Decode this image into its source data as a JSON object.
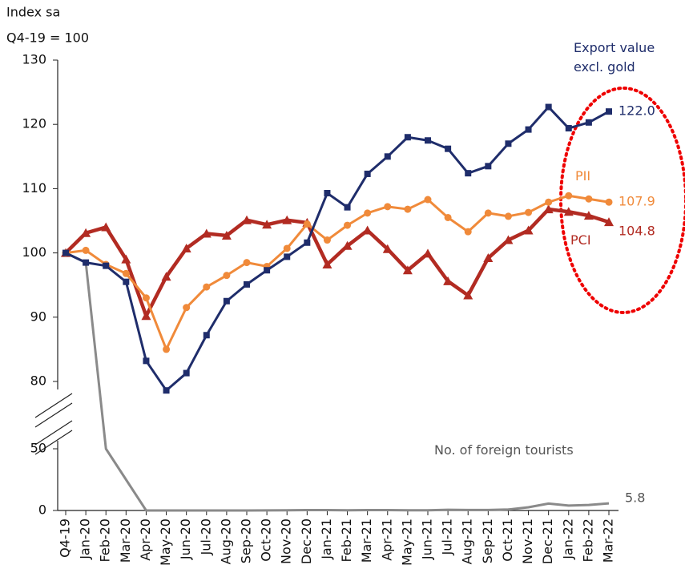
{
  "chart_data": {
    "type": "line",
    "y_title": [
      "Index sa",
      "Q4-19 = 100"
    ],
    "categories": [
      "Q4-19",
      "Jan-20",
      "Feb-20",
      "Mar-20",
      "Apr-20",
      "May-20",
      "Jun-20",
      "Jul-20",
      "Aug-20",
      "Sep-20",
      "Oct-20",
      "Nov-20",
      "Dec-20",
      "Jan-21",
      "Feb-21",
      "Mar-21",
      "Apr-21",
      "May-21",
      "Jun-21",
      "Jul-21",
      "Aug-21",
      "Sep-21",
      "Oct-21",
      "Nov-21",
      "Dec-21",
      "Jan-22",
      "Feb-22",
      "Mar-22"
    ],
    "ylim": [
      0,
      130
    ],
    "y_break": [
      50,
      80
    ],
    "yticks": [
      0,
      50,
      80,
      90,
      100,
      110,
      120,
      130
    ],
    "series": [
      {
        "name": "Export value excl. gold",
        "color": "#1f2d6b",
        "marker": "square",
        "values": [
          100,
          98.5,
          98.0,
          95.5,
          83.2,
          76.0,
          81.3,
          87.2,
          92.5,
          95.1,
          97.3,
          99.4,
          101.6,
          109.3,
          107.1,
          112.3,
          115.0,
          118.0,
          117.5,
          116.2,
          112.4,
          113.5,
          117.0,
          119.2,
          122.7,
          119.4,
          120.3,
          122.0
        ],
        "value_labels": [
          null,
          null,
          null,
          null,
          null,
          null,
          null,
          null,
          null,
          null,
          null,
          null,
          null,
          null,
          null,
          null,
          null,
          null,
          null,
          null,
          null,
          null,
          null,
          null,
          null,
          null,
          null,
          "122.0"
        ]
      },
      {
        "name": "PII",
        "color": "#f08a3a",
        "marker": "circle",
        "values": [
          100,
          100.4,
          98.2,
          96.8,
          93.0,
          85.0,
          91.5,
          94.7,
          96.5,
          98.5,
          97.9,
          100.7,
          104.5,
          102.0,
          104.3,
          106.2,
          107.2,
          106.8,
          108.3,
          105.5,
          103.3,
          106.2,
          105.7,
          106.3,
          107.9,
          108.9,
          108.4,
          107.9
        ],
        "value_labels": [
          null,
          null,
          null,
          null,
          null,
          null,
          null,
          null,
          null,
          null,
          null,
          null,
          null,
          null,
          null,
          null,
          null,
          null,
          null,
          null,
          null,
          null,
          null,
          null,
          null,
          null,
          null,
          "107.9"
        ]
      },
      {
        "name": "PCI",
        "color": "#b22b22",
        "marker": "triangle",
        "values": [
          100,
          103.1,
          104.0,
          99.0,
          90.2,
          96.3,
          100.7,
          103.0,
          102.7,
          105.1,
          104.4,
          105.1,
          104.7,
          98.2,
          101.1,
          103.5,
          100.6,
          97.3,
          99.9,
          95.6,
          93.4,
          99.2,
          102.0,
          103.5,
          106.8,
          106.4,
          105.8,
          104.8
        ],
        "value_labels": [
          null,
          null,
          null,
          null,
          null,
          null,
          null,
          null,
          null,
          null,
          null,
          null,
          null,
          null,
          null,
          null,
          null,
          null,
          null,
          null,
          null,
          null,
          null,
          null,
          null,
          null,
          null,
          "104.8"
        ]
      },
      {
        "name": "No. of foreign tourists",
        "color": "#8a8a8a",
        "marker": "none",
        "values": [
          100,
          98.5,
          50,
          25,
          0,
          0,
          0,
          0,
          0,
          0,
          0.1,
          0.2,
          0.3,
          0.3,
          0.2,
          0.3,
          0.3,
          0.2,
          0.2,
          0.6,
          0.4,
          0.4,
          0.8,
          2.6,
          5.6,
          4.0,
          4.5,
          5.8
        ],
        "value_labels": [
          null,
          null,
          null,
          null,
          null,
          null,
          null,
          null,
          null,
          null,
          null,
          null,
          null,
          null,
          null,
          null,
          null,
          null,
          null,
          null,
          null,
          null,
          null,
          null,
          null,
          null,
          null,
          "5.8"
        ]
      }
    ]
  }
}
